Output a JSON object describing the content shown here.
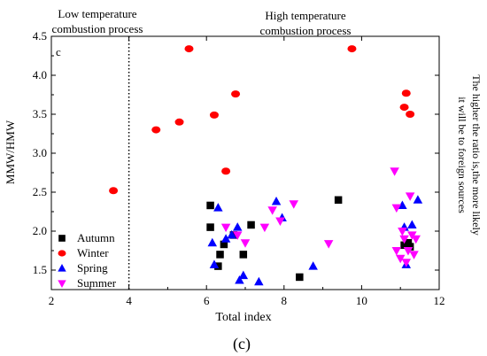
{
  "figure_label": "(c)",
  "chart_data": {
    "type": "scatter",
    "panel_label": "c",
    "xlabel": "Total index",
    "ylabel": "MMW/HMW",
    "xlim": [
      2,
      12
    ],
    "ylim": [
      1.25,
      4.5
    ],
    "xticks": [
      2,
      4,
      6,
      8,
      10,
      12
    ],
    "yticks": [
      1.5,
      2.0,
      2.5,
      3.0,
      3.5,
      4.0,
      4.5
    ],
    "grid": false,
    "legend_position": "bottom-left",
    "divider": {
      "x": 4,
      "style": "dotted",
      "left_label": [
        "Low temperature",
        "combustion process"
      ],
      "right_label": [
        "High temperature",
        "combustion process"
      ]
    },
    "right_annotation": [
      "The higher the ratio is,the more likely",
      "it will be to foreign sources"
    ],
    "series": [
      {
        "name": "Autumn",
        "marker": "square",
        "color": "#000000",
        "points": [
          [
            6.1,
            2.33
          ],
          [
            6.1,
            2.05
          ],
          [
            6.3,
            1.55
          ],
          [
            6.35,
            1.7
          ],
          [
            6.45,
            1.83
          ],
          [
            6.7,
            1.95
          ],
          [
            6.95,
            1.7
          ],
          [
            7.15,
            2.08
          ],
          [
            8.4,
            1.41
          ],
          [
            9.4,
            2.4
          ],
          [
            11.1,
            1.82
          ],
          [
            11.2,
            1.85
          ],
          [
            11.25,
            1.8
          ]
        ]
      },
      {
        "name": "Winter",
        "marker": "circle",
        "color": "#ff0000",
        "points": [
          [
            3.6,
            2.52
          ],
          [
            4.7,
            3.3
          ],
          [
            5.3,
            3.4
          ],
          [
            5.55,
            4.34
          ],
          [
            6.2,
            3.49
          ],
          [
            6.5,
            2.77
          ],
          [
            6.75,
            3.76
          ],
          [
            9.75,
            4.34
          ],
          [
            11.1,
            3.59
          ],
          [
            11.15,
            3.77
          ],
          [
            11.25,
            3.5
          ]
        ]
      },
      {
        "name": "Spring",
        "marker": "triangle-up",
        "color": "#0000ff",
        "points": [
          [
            6.15,
            1.85
          ],
          [
            6.2,
            1.57
          ],
          [
            6.3,
            2.3
          ],
          [
            6.5,
            1.9
          ],
          [
            6.65,
            1.95
          ],
          [
            6.8,
            2.05
          ],
          [
            6.85,
            1.37
          ],
          [
            6.95,
            1.43
          ],
          [
            7.35,
            1.35
          ],
          [
            7.8,
            2.38
          ],
          [
            7.95,
            2.17
          ],
          [
            8.75,
            1.55
          ],
          [
            11.05,
            2.33
          ],
          [
            11.1,
            2.05
          ],
          [
            11.15,
            1.57
          ],
          [
            11.3,
            2.08
          ],
          [
            11.45,
            2.4
          ]
        ]
      },
      {
        "name": "Summer",
        "marker": "triangle-down",
        "color": "#ff00ff",
        "points": [
          [
            6.5,
            2.05
          ],
          [
            6.8,
            1.95
          ],
          [
            7.0,
            1.85
          ],
          [
            7.5,
            2.05
          ],
          [
            7.7,
            2.27
          ],
          [
            7.9,
            2.13
          ],
          [
            8.25,
            2.35
          ],
          [
            9.15,
            1.84
          ],
          [
            10.85,
            2.77
          ],
          [
            10.9,
            2.3
          ],
          [
            10.9,
            1.75
          ],
          [
            11.0,
            1.65
          ],
          [
            11.05,
            2.0
          ],
          [
            11.1,
            1.9
          ],
          [
            11.15,
            1.6
          ],
          [
            11.2,
            1.75
          ],
          [
            11.25,
            2.45
          ],
          [
            11.3,
            1.95
          ],
          [
            11.35,
            1.7
          ],
          [
            11.4,
            1.9
          ]
        ]
      }
    ]
  }
}
